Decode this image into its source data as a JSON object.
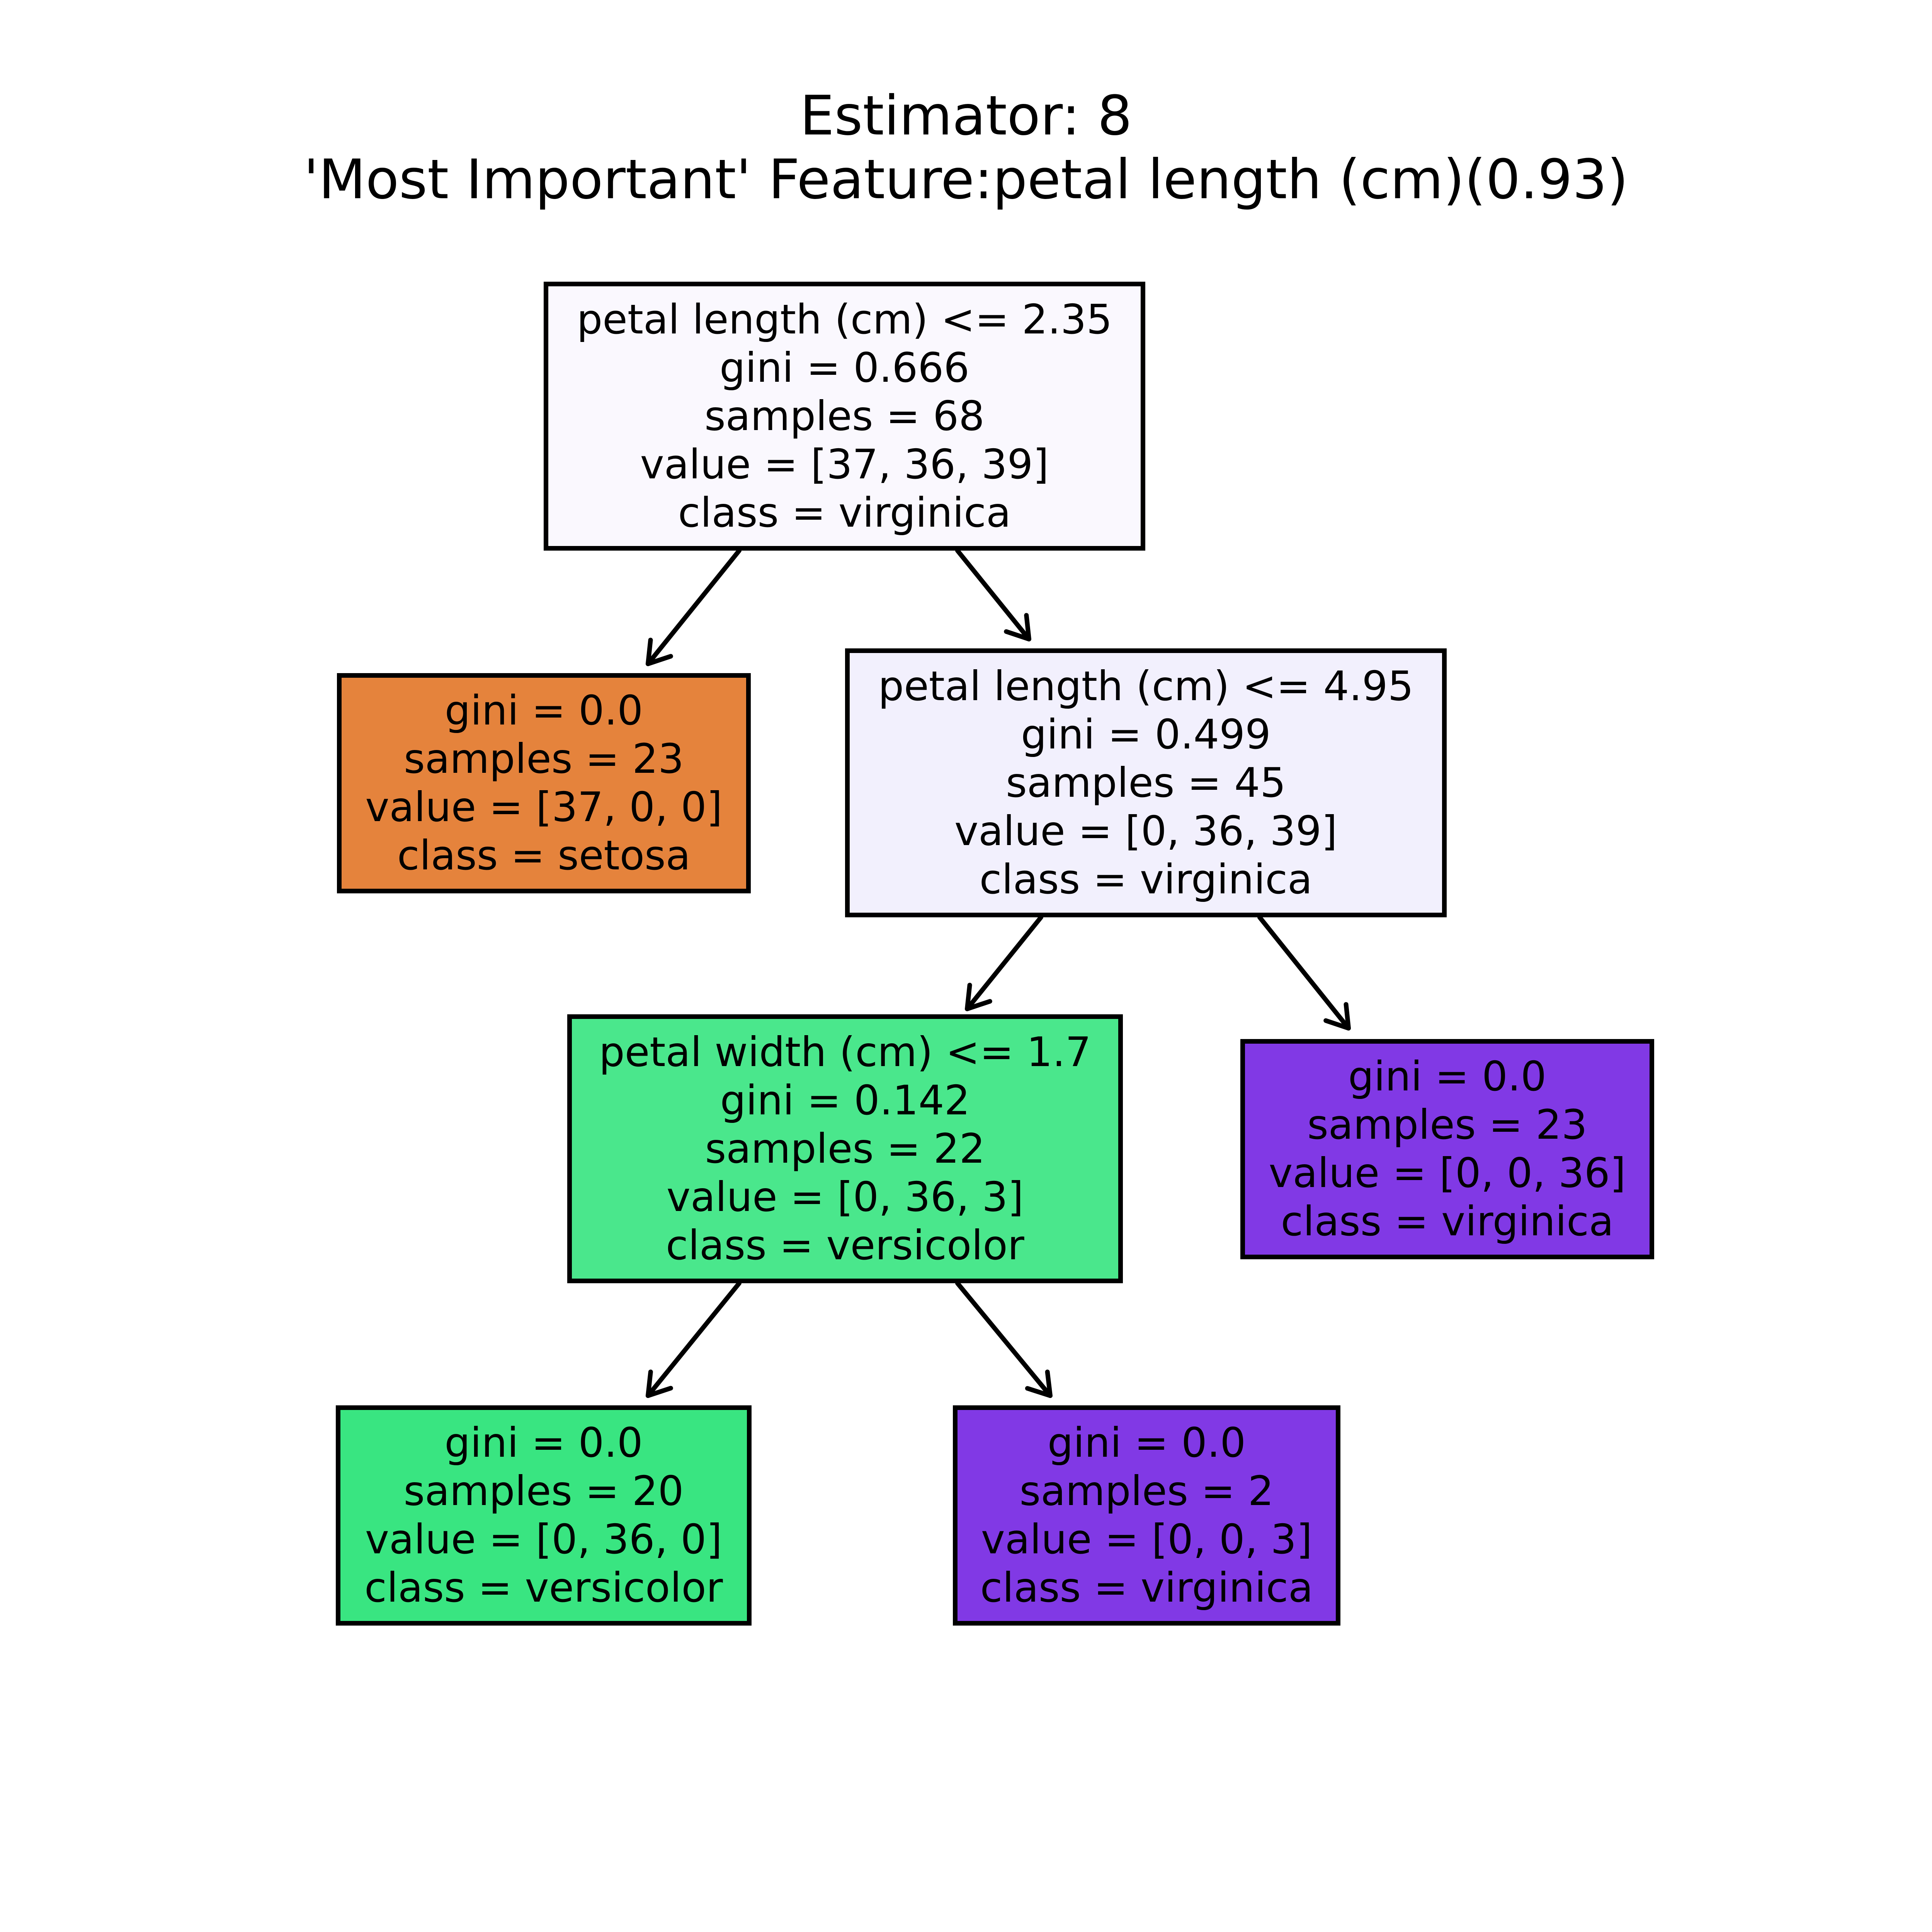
{
  "title": {
    "line1": "Estimator: 8",
    "line2": "'Most Important' Feature:petal length (cm)(0.93)"
  },
  "nodes": [
    {
      "id": "root",
      "split": "petal length (cm) <= 2.35",
      "gini": "gini = 0.666",
      "samples": "samples = 68",
      "value": "value = [37, 36, 39]",
      "class": "class = virginica",
      "fill": "#faf8fe"
    },
    {
      "id": "leaf-setosa",
      "gini": "gini = 0.0",
      "samples": "samples = 23",
      "value": "value = [37, 0, 0]",
      "class": "class = setosa",
      "fill": "#e5833c"
    },
    {
      "id": "split-petal-length-4-95",
      "split": "petal length (cm) <= 4.95",
      "gini": "gini = 0.499",
      "samples": "samples = 45",
      "value": "value = [0, 36, 39]",
      "class": "class = virginica",
      "fill": "#f2f0fd"
    },
    {
      "id": "split-petal-width-1-7",
      "split": "petal width (cm) <= 1.7",
      "gini": "gini = 0.142",
      "samples": "samples = 22",
      "value": "value = [0, 36, 3]",
      "class": "class = versicolor",
      "fill": "#4ae78c"
    },
    {
      "id": "leaf-virginica-23",
      "gini": "gini = 0.0",
      "samples": "samples = 23",
      "value": "value = [0, 0, 36]",
      "class": "class = virginica",
      "fill": "#8139e5"
    },
    {
      "id": "leaf-versicolor-20",
      "gini": "gini = 0.0",
      "samples": "samples = 20",
      "value": "value = [0, 36, 0]",
      "class": "class = versicolor",
      "fill": "#39e581"
    },
    {
      "id": "leaf-virginica-2",
      "gini": "gini = 0.0",
      "samples": "samples = 2",
      "value": "value = [0, 0, 3]",
      "class": "class = virginica",
      "fill": "#8139e5"
    }
  ],
  "edges": [
    {
      "from": "root",
      "to": "leaf-setosa"
    },
    {
      "from": "root",
      "to": "split-petal-length-4-95"
    },
    {
      "from": "split-petal-length-4-95",
      "to": "split-petal-width-1-7"
    },
    {
      "from": "split-petal-length-4-95",
      "to": "leaf-virginica-23"
    },
    {
      "from": "split-petal-width-1-7",
      "to": "leaf-versicolor-20"
    },
    {
      "from": "split-petal-width-1-7",
      "to": "leaf-virginica-2"
    }
  ]
}
